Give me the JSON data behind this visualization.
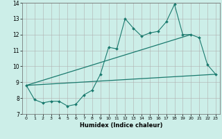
{
  "title": "",
  "xlabel": "Humidex (Indice chaleur)",
  "background_color": "#cceee8",
  "grid_color": "#b0b0b0",
  "line_color": "#1a7a6e",
  "xlim": [
    -0.5,
    23.5
  ],
  "ylim": [
    7,
    14
  ],
  "yticks": [
    7,
    8,
    9,
    10,
    11,
    12,
    13,
    14
  ],
  "xticks": [
    0,
    1,
    2,
    3,
    4,
    5,
    6,
    7,
    8,
    9,
    10,
    11,
    12,
    13,
    14,
    15,
    16,
    17,
    18,
    19,
    20,
    21,
    22,
    23
  ],
  "series1_x": [
    0,
    1,
    2,
    3,
    4,
    5,
    6,
    7,
    8,
    9,
    10,
    11,
    12,
    13,
    14,
    15,
    16,
    17,
    18,
    19,
    20,
    21,
    22,
    23
  ],
  "series1_y": [
    8.8,
    7.9,
    7.7,
    7.8,
    7.8,
    7.5,
    7.6,
    8.2,
    8.5,
    9.5,
    11.2,
    11.1,
    13.0,
    12.4,
    11.9,
    12.1,
    12.2,
    12.8,
    13.9,
    12.0,
    12.0,
    11.8,
    10.1,
    9.5
  ],
  "series2_x": [
    0,
    23
  ],
  "series2_y": [
    8.8,
    9.5
  ],
  "series3_x": [
    0,
    20
  ],
  "series3_y": [
    8.8,
    12.0
  ]
}
